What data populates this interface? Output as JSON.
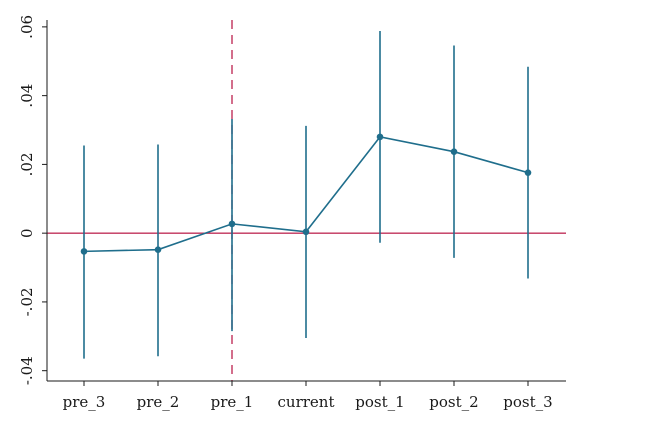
{
  "chart_data": {
    "type": "line",
    "title": "",
    "xlabel": "",
    "ylabel": "",
    "categories": [
      "pre_3",
      "pre_2",
      "pre_1",
      "current",
      "post_1",
      "post_2",
      "post_3"
    ],
    "series": [
      {
        "values": [
          -0.0053,
          -0.0048,
          0.0027,
          0.0004,
          0.028,
          0.0237,
          0.0176
        ],
        "ci_low": [
          -0.0365,
          -0.0358,
          -0.0285,
          -0.0305,
          -0.0028,
          -0.0072,
          -0.0132
        ],
        "ci_high": [
          0.0255,
          0.0258,
          0.0332,
          0.0312,
          0.0588,
          0.0546,
          0.0484
        ]
      }
    ],
    "yticks": [
      -0.04,
      -0.02,
      0,
      0.02,
      0.04,
      0.06
    ],
    "ytick_labels": [
      "-.04",
      "-.02",
      "0",
      ".02",
      ".04",
      ".06"
    ],
    "ylim": [
      -0.043,
      0.062
    ],
    "reference_lines": {
      "horizontal_y": 0,
      "vertical_category": "pre_1"
    },
    "grid": false,
    "colors": {
      "series": "#1f6e8c",
      "reference": "#c0315a",
      "axis": "#1a1a1a"
    }
  }
}
